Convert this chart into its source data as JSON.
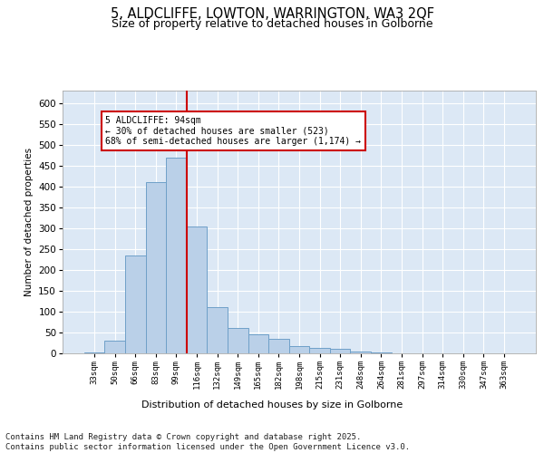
{
  "title_line1": "5, ALDCLIFFE, LOWTON, WARRINGTON, WA3 2QF",
  "title_line2": "Size of property relative to detached houses in Golborne",
  "xlabel": "Distribution of detached houses by size in Golborne",
  "ylabel": "Number of detached properties",
  "categories": [
    "33sqm",
    "50sqm",
    "66sqm",
    "83sqm",
    "99sqm",
    "116sqm",
    "132sqm",
    "149sqm",
    "165sqm",
    "182sqm",
    "198sqm",
    "215sqm",
    "231sqm",
    "248sqm",
    "264sqm",
    "281sqm",
    "297sqm",
    "314sqm",
    "330sqm",
    "347sqm",
    "363sqm"
  ],
  "values": [
    2,
    30,
    235,
    410,
    470,
    305,
    110,
    60,
    45,
    35,
    18,
    12,
    11,
    5,
    2,
    0,
    0,
    0,
    0,
    0,
    1
  ],
  "bar_color": "#bad0e8",
  "bar_edgecolor": "#6fa0c8",
  "vline_color": "#cc0000",
  "vline_x": 4.5,
  "annotation_text": "5 ALDCLIFFE: 94sqm\n← 30% of detached houses are smaller (523)\n68% of semi-detached houses are larger (1,174) →",
  "annotation_box_facecolor": "#ffffff",
  "annotation_box_edgecolor": "#cc0000",
  "ylim": [
    0,
    630
  ],
  "yticks": [
    0,
    50,
    100,
    150,
    200,
    250,
    300,
    350,
    400,
    450,
    500,
    550,
    600
  ],
  "plot_background": "#dce8f5",
  "grid_color": "#ffffff",
  "footer": "Contains HM Land Registry data © Crown copyright and database right 2025.\nContains public sector information licensed under the Open Government Licence v3.0.",
  "footer_fontsize": 6.5,
  "title1_fontsize": 10.5,
  "title2_fontsize": 9
}
